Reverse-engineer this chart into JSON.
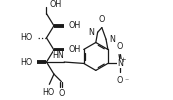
{
  "bg_color": "#ffffff",
  "line_color": "#1a1a1a",
  "lw": 0.9,
  "fontsize": 5.8,
  "figw": 1.73,
  "figh": 1.0,
  "dpi": 100,
  "xlim": [
    0,
    17
  ],
  "ylim": [
    0,
    10
  ]
}
